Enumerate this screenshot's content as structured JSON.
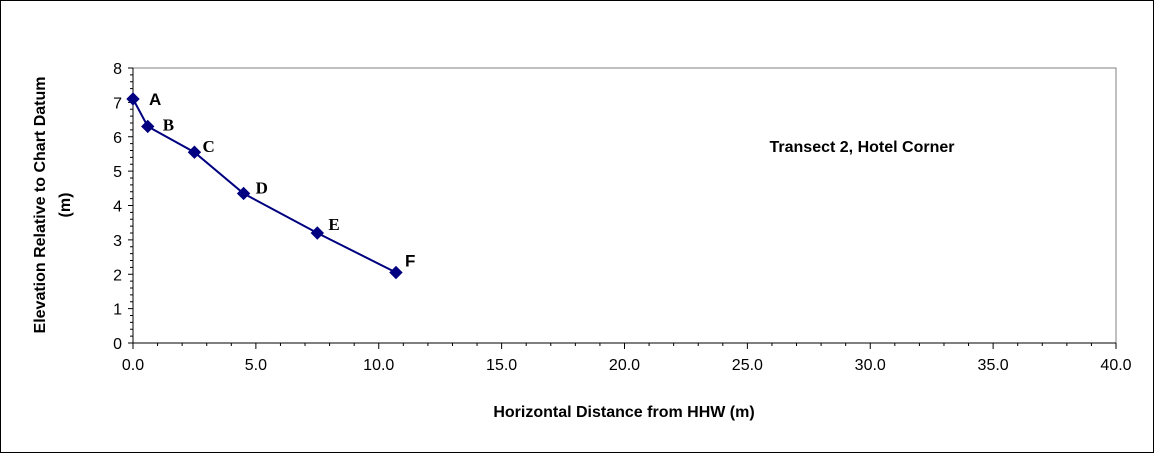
{
  "chart_data": {
    "type": "scatter",
    "title": "",
    "annotation": "Transect 2, Hotel Corner",
    "xlabel": "Horizontal Distance from HHW (m)",
    "ylabel_line1": "Elevation Relative to Chart Datum",
    "ylabel_line2": "(m)",
    "xlim": [
      0,
      40
    ],
    "ylim": [
      0,
      8
    ],
    "x_ticks": [
      "0.0",
      "5.0",
      "10.0",
      "15.0",
      "20.0",
      "25.0",
      "30.0",
      "35.0",
      "40.0"
    ],
    "y_ticks": [
      "0",
      "1",
      "2",
      "3",
      "4",
      "5",
      "6",
      "7",
      "8"
    ],
    "grid": false,
    "legend": "none",
    "series": [
      {
        "color": "#000080",
        "marker": "diamond",
        "x": [
          0.0,
          0.6,
          2.5,
          4.5,
          7.5,
          10.7
        ],
        "y": [
          7.1,
          6.3,
          5.55,
          4.35,
          3.2,
          2.05
        ],
        "labels": [
          "A",
          "B",
          "C",
          "D",
          "E",
          "F"
        ]
      }
    ]
  }
}
